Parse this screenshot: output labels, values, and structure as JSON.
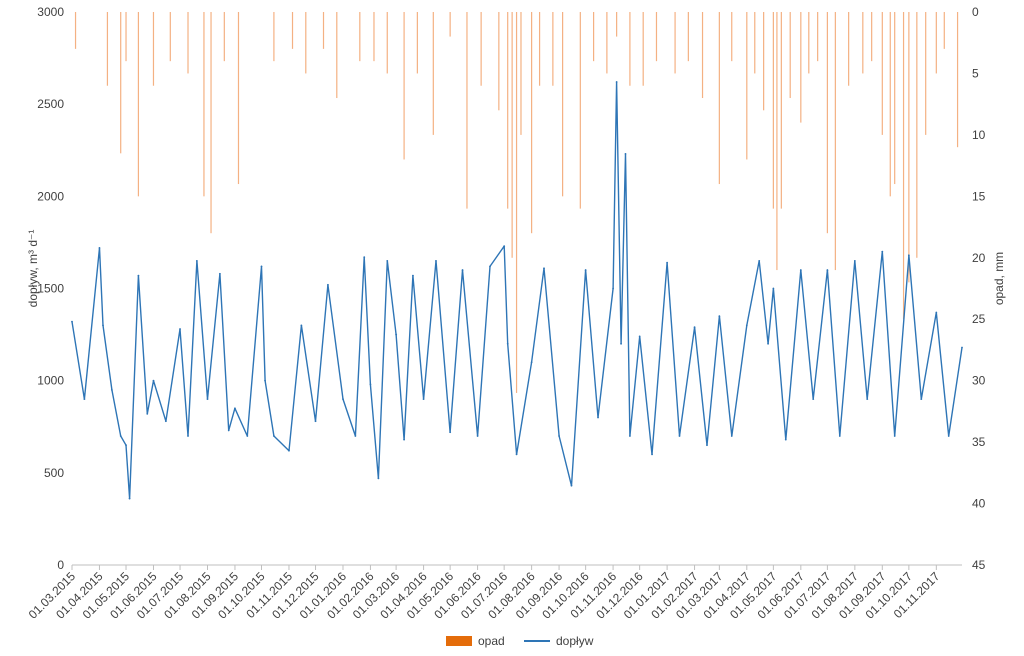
{
  "chart_data": {
    "type": "line",
    "title": "",
    "x_tick_labels": [
      "01.03.2015",
      "01.04.2015",
      "01.05.2015",
      "01.06.2015",
      "01.07.2015",
      "01.08.2015",
      "01.09.2015",
      "01.10.2015",
      "01.11.2015",
      "01.12.2015",
      "01.01.2016",
      "01.02.2016",
      "01.03.2016",
      "01.04.2016",
      "01.05.2016",
      "01.06.2016",
      "01.07.2016",
      "01.08.2016",
      "01.09.2016",
      "01.10.2016",
      "01.11.2016",
      "01.12.2016",
      "01.01.2017",
      "01.02.2017",
      "01.03.2017",
      "01.04.2017",
      "01.05.2017",
      "01.06.2017",
      "01.07.2017",
      "01.08.2017",
      "01.09.2017",
      "01.10.2017",
      "01.11.2017"
    ],
    "x_range": [
      "01.03.2015",
      "30.11.2017"
    ],
    "y_left": {
      "label": "dopływ, m³ d⁻¹",
      "ylim": [
        0,
        3000
      ],
      "ticks": [
        0,
        500,
        1000,
        1500,
        2000,
        2500,
        3000
      ]
    },
    "y_right": {
      "label": "opad, mm",
      "ylim": [
        0,
        45
      ],
      "inverted": true,
      "ticks": [
        0,
        5,
        10,
        15,
        20,
        25,
        30,
        35,
        40,
        45
      ]
    },
    "legend": {
      "position": "bottom",
      "items": [
        {
          "name": "opad",
          "symbol": "bar"
        },
        {
          "name": "dopływ",
          "symbol": "line"
        }
      ]
    },
    "series": [
      {
        "name": "dopływ",
        "type": "line",
        "axis": "left",
        "color": "#2E75B6",
        "x": [
          "01.03.2015",
          "15.03.2015",
          "01.04.2015",
          "05.04.2015",
          "15.04.2015",
          "25.04.2015",
          "01.05.2015",
          "05.05.2015",
          "15.05.2015",
          "25.05.2015",
          "01.06.2015",
          "15.06.2015",
          "01.07.2015",
          "10.07.2015",
          "20.07.2015",
          "01.08.2015",
          "15.08.2015",
          "25.08.2015",
          "01.09.2015",
          "15.09.2015",
          "01.10.2015",
          "05.10.2015",
          "15.10.2015",
          "01.11.2015",
          "15.11.2015",
          "01.12.2015",
          "15.12.2015",
          "01.01.2016",
          "15.01.2016",
          "25.01.2016",
          "01.02.2016",
          "10.02.2016",
          "20.02.2016",
          "01.03.2016",
          "10.03.2016",
          "20.03.2016",
          "01.04.2016",
          "15.04.2016",
          "01.05.2016",
          "15.05.2016",
          "01.06.2016",
          "15.06.2016",
          "01.07.2016",
          "05.07.2016",
          "15.07.2016",
          "01.08.2016",
          "15.08.2016",
          "01.09.2016",
          "15.09.2016",
          "01.10.2016",
          "15.10.2016",
          "01.11.2016",
          "05.11.2016",
          "10.11.2016",
          "15.11.2016",
          "20.11.2016",
          "01.12.2016",
          "15.12.2016",
          "01.01.2017",
          "15.01.2017",
          "01.02.2017",
          "15.02.2017",
          "01.03.2017",
          "15.03.2017",
          "01.04.2017",
          "15.04.2017",
          "25.04.2017",
          "01.05.2017",
          "15.05.2017",
          "01.06.2017",
          "15.06.2017",
          "01.07.2017",
          "15.07.2017",
          "01.08.2017",
          "15.08.2017",
          "01.09.2017",
          "15.09.2017",
          "01.10.2017",
          "15.10.2017",
          "01.11.2017",
          "15.11.2017",
          "30.11.2017"
        ],
        "values": [
          1320,
          900,
          1720,
          1300,
          950,
          700,
          650,
          360,
          1570,
          820,
          1000,
          780,
          1280,
          700,
          1650,
          900,
          1580,
          730,
          850,
          700,
          1620,
          1000,
          700,
          620,
          1300,
          780,
          1520,
          900,
          700,
          1670,
          980,
          470,
          1650,
          1250,
          680,
          1570,
          900,
          1650,
          720,
          1600,
          700,
          1620,
          1730,
          1200,
          600,
          1100,
          1610,
          700,
          430,
          1600,
          800,
          1500,
          2620,
          1200,
          2230,
          700,
          1240,
          600,
          1640,
          700,
          1290,
          650,
          1350,
          700,
          1300,
          1650,
          1200,
          1500,
          680,
          1600,
          900,
          1600,
          700,
          1650,
          900,
          1700,
          700,
          1680,
          900,
          1370,
          700,
          1180
        ]
      },
      {
        "name": "opad",
        "type": "bar",
        "axis": "right",
        "color": "#F4B183",
        "x": [
          "05.03.2015",
          "10.04.2015",
          "25.04.2015",
          "01.05.2015",
          "15.05.2015",
          "01.06.2015",
          "20.06.2015",
          "10.07.2015",
          "28.07.2015",
          "05.08.2015",
          "20.08.2015",
          "05.09.2015",
          "15.10.2015",
          "05.11.2015",
          "20.11.2015",
          "10.12.2015",
          "25.12.2015",
          "20.01.2016",
          "05.02.2016",
          "20.02.2016",
          "10.03.2016",
          "25.03.2016",
          "12.04.2016",
          "01.05.2016",
          "20.05.2016",
          "05.06.2016",
          "25.06.2016",
          "05.07.2016",
          "10.07.2016",
          "15.07.2016",
          "20.07.2016",
          "01.08.2016",
          "10.08.2016",
          "25.08.2016",
          "05.09.2016",
          "25.09.2016",
          "10.10.2016",
          "25.10.2016",
          "05.11.2016",
          "20.11.2016",
          "05.12.2016",
          "20.12.2016",
          "10.01.2017",
          "25.01.2017",
          "10.02.2017",
          "01.03.2017",
          "15.03.2017",
          "01.04.2017",
          "10.04.2017",
          "20.04.2017",
          "01.05.2017",
          "05.05.2017",
          "10.05.2017",
          "20.05.2017",
          "01.06.2017",
          "10.06.2017",
          "20.06.2017",
          "01.07.2017",
          "10.07.2017",
          "25.07.2017",
          "10.08.2017",
          "20.08.2017",
          "01.09.2017",
          "10.09.2017",
          "15.09.2017",
          "25.09.2017",
          "01.10.2017",
          "10.10.2017",
          "20.10.2017",
          "01.11.2017",
          "10.11.2017",
          "25.11.2017"
        ],
        "values": [
          3,
          6,
          11.5,
          4,
          15,
          6,
          4,
          5,
          15,
          18,
          4,
          14,
          4,
          3,
          5,
          3,
          7,
          4,
          4,
          5,
          12,
          5,
          10,
          2,
          16,
          6,
          8,
          16,
          20,
          31,
          10,
          18,
          6,
          6,
          15,
          16,
          4,
          5,
          2,
          6,
          6,
          4,
          5,
          4,
          7,
          14,
          4,
          12,
          5,
          8,
          16,
          21,
          16,
          7,
          9,
          5,
          4,
          18,
          21,
          6,
          5,
          4,
          10,
          15,
          14,
          25,
          22,
          20,
          10,
          5,
          3,
          11
        ]
      }
    ]
  }
}
